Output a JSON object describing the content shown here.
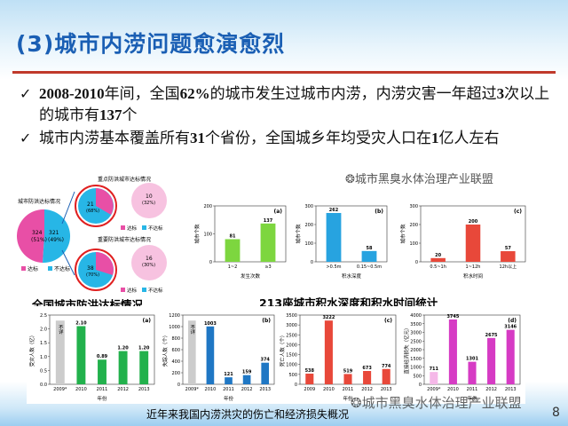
{
  "slide": {
    "title": "(3)城市内涝问题愈演愈烈",
    "bullets": [
      {
        "pre": "",
        "b1": "2008-2010",
        "mid": "年间，全国",
        "b2": "62%",
        "post": "的城市发生过城市内涝，内涝灾害一年超过",
        "b3": "3",
        "post2": "次以上的城市有",
        "b4": "137",
        "post3": "个"
      },
      {
        "pre": "城市内涝基本覆盖所有",
        "b1": "31",
        "mid": "个省份，全国城乡年均受灾人口在",
        "b2": "1",
        "post": "亿人左右",
        "b3": "",
        "post2": "",
        "b4": "",
        "post3": ""
      }
    ],
    "caption_left": "全国城市防洪达标情况",
    "caption_right": "213座城市积水深度和积水时间统计",
    "bottom_caption": "近年来我国内涝洪灾的伤亡和经济损失概况",
    "page_number": "8",
    "watermark": "城市黑臭水体治理产业联盟",
    "watermark_bottom": "城市黑臭水体治理产业联盟"
  },
  "pie_panel": {
    "left_title": "城市防洪达标情况",
    "big_pie": {
      "values": [
        {
          "label": "324",
          "sub": "(51%)"
        },
        {
          "label": "321",
          "sub": "(49%)"
        }
      ],
      "colors": [
        "#e84fa6",
        "#27b6e6"
      ]
    },
    "big_legend": [
      "达标",
      "不达标"
    ],
    "top_title": "重点防洪城市达标情况",
    "top_pie": {
      "values": [
        {
          "label": "10",
          "sub": "(32%)"
        },
        {
          "label": "21",
          "sub": "(68%)"
        }
      ]
    },
    "top_legend": [
      "达标",
      "不达标"
    ],
    "bottom_title": "重要防洪城市达标情况",
    "bottom_pie": {
      "values": [
        {
          "label": "16",
          "sub": "(30%)"
        },
        {
          "label": "38",
          "sub": "(70%)"
        }
      ]
    },
    "bottom_legend": [
      "达标",
      "不达标"
    ]
  },
  "chart_data": [
    {
      "type": "bar",
      "id": "a1",
      "panel": "(a)",
      "ylabel": "城市个数",
      "xlabel": "发生次数",
      "categories": [
        "1~2",
        "≥3"
      ],
      "values": [
        81,
        137
      ],
      "colors": [
        "#7dd63f",
        "#7dd63f"
      ],
      "ylim": [
        0,
        200
      ],
      "yticks": [
        "0",
        "100",
        "200"
      ]
    },
    {
      "type": "bar",
      "id": "b1",
      "panel": "(b)",
      "ylabel": "城市个数",
      "xlabel": "积水深度",
      "categories": [
        ">0.5m",
        "0.15~0.5m"
      ],
      "values": [
        262,
        58
      ],
      "colors": [
        "#27a3e0",
        "#27a3e0"
      ],
      "ylim": [
        0,
        300
      ],
      "yticks": [
        "0",
        "100",
        "200",
        "300"
      ]
    },
    {
      "type": "bar",
      "id": "c1",
      "panel": "(c)",
      "ylabel": "城市个数",
      "xlabel": "积水时间",
      "categories": [
        "0.5~1h",
        "1~12h",
        "12h以上"
      ],
      "values": [
        20,
        200,
        57
      ],
      "colors": [
        "#e8483a",
        "#e8483a",
        "#e8483a"
      ],
      "ylim": [
        0,
        300
      ],
      "yticks": [
        "0",
        "100",
        "200",
        "300"
      ]
    },
    {
      "type": "bar",
      "id": "a2",
      "panel": "(a)",
      "ylabel": "受灾人数（亿）",
      "xlabel": "年份",
      "categories": [
        "2009*",
        "2010",
        "2011",
        "2012",
        "2013"
      ],
      "values": [
        null,
        2.1,
        0.89,
        1.2,
        1.2
      ],
      "labels": [
        "不详",
        "2.10",
        "0.89",
        "1.20",
        "1.20"
      ],
      "colors": [
        "#cccccc",
        "#22b14c",
        "#22b14c",
        "#22b14c",
        "#22b14c"
      ],
      "ylim": [
        0,
        2.5
      ],
      "yticks": [
        "0.0",
        "0.5",
        "1.0",
        "1.5",
        "2.0",
        "2.5"
      ]
    },
    {
      "type": "bar",
      "id": "b2",
      "panel": "(b)",
      "ylabel": "失踪人数（个）",
      "xlabel": "年份",
      "categories": [
        "2009*",
        "2010",
        "2011",
        "2012",
        "2013"
      ],
      "values": [
        null,
        1003,
        121,
        159,
        374
      ],
      "labels": [
        "不详",
        "1003",
        "121",
        "159",
        "374"
      ],
      "colors": [
        "#cccccc",
        "#1f77c4",
        "#1f77c4",
        "#1f77c4",
        "#1f77c4"
      ],
      "ylim": [
        0,
        1200
      ],
      "yticks": [
        "0",
        "200",
        "400",
        "600",
        "800",
        "1000",
        "1200"
      ]
    },
    {
      "type": "bar",
      "id": "c2",
      "panel": "(c)",
      "ylabel": "死亡人数（个）",
      "xlabel": "年份",
      "categories": [
        "2009",
        "2010",
        "2011",
        "2012",
        "2013"
      ],
      "values": [
        538,
        3222,
        519,
        673,
        774
      ],
      "labels": [
        "538",
        "3222",
        "519",
        "673",
        "774"
      ],
      "colors": [
        "#e8483a",
        "#e8483a",
        "#e8483a",
        "#e8483a",
        "#e8483a"
      ],
      "ylim": [
        0,
        3500
      ],
      "yticks": [
        "0",
        "500",
        "1000",
        "1500",
        "2000",
        "2500",
        "3000",
        "3500"
      ]
    },
    {
      "type": "bar",
      "id": "d2",
      "panel": "(d)",
      "ylabel": "直接经济损失（亿元）",
      "xlabel": "年份",
      "categories": [
        "2009*",
        "2010",
        "2011",
        "2012",
        "2013"
      ],
      "values": [
        711,
        3745,
        1301,
        2675,
        3146
      ],
      "labels": [
        "711",
        "3745",
        "1301",
        "2675",
        "3146"
      ],
      "colors": [
        "#f5b8e8",
        "#d63bc4",
        "#d63bc4",
        "#d63bc4",
        "#d63bc4"
      ],
      "ylim": [
        0,
        4000
      ],
      "yticks": [
        "0",
        "500",
        "1000",
        "1500",
        "2000",
        "2500",
        "3000",
        "3500",
        "4000"
      ]
    }
  ]
}
